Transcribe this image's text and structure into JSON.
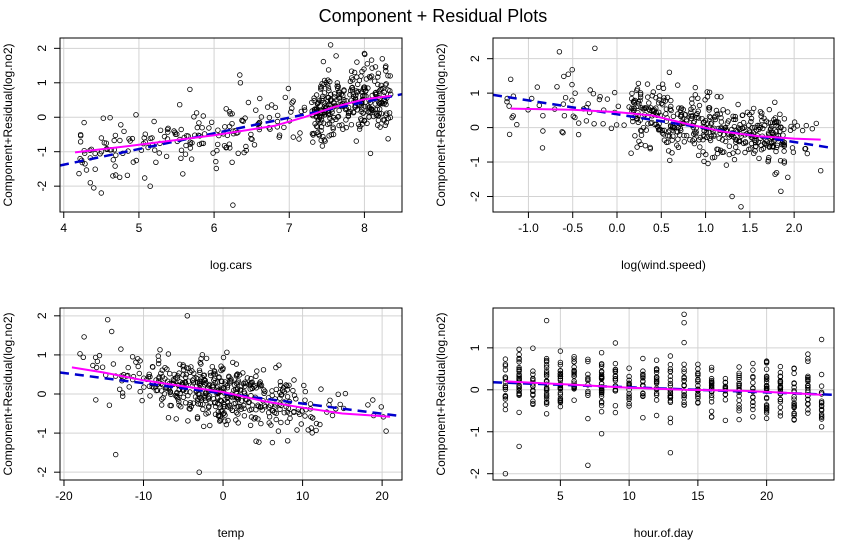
{
  "figure_title": "Component + Residual Plots",
  "colors": {
    "points": "#000000",
    "linear_fit": "#0000cd",
    "smooth_fit": "#ff00ff",
    "grid": "#d3d3d3",
    "frame": "#000000"
  },
  "chart_data": [
    {
      "type": "scatter",
      "xlabel": "log.cars",
      "ylabel": "Component+Residual(log.no2)",
      "xlim": [
        3.95,
        8.5
      ],
      "ylim": [
        -2.75,
        2.3
      ],
      "xticks": [
        4,
        5,
        6,
        7,
        8
      ],
      "yticks": [
        -2,
        -1,
        0,
        1,
        2
      ],
      "grid": true,
      "seed": 11,
      "points": {
        "count": 500,
        "x_distribution": "concentrated near 7.4-8.3, sparser 4.2-6.5",
        "trend": [
          [
            4.1,
            -1.05
          ],
          [
            5.0,
            -0.8
          ],
          [
            6.0,
            -0.5
          ],
          [
            7.0,
            0.0
          ],
          [
            7.6,
            0.35
          ],
          [
            8.2,
            0.55
          ]
        ],
        "spread_sd": 0.6,
        "outliers": [
          [
            7.55,
            2.1
          ],
          [
            8.0,
            1.85
          ],
          [
            6.25,
            -2.55
          ],
          [
            4.4,
            -2.05
          ],
          [
            4.5,
            -2.2
          ],
          [
            5.15,
            -2.0
          ],
          [
            6.35,
            1.0
          ],
          [
            7.9,
            1.6
          ]
        ]
      },
      "linear_fit": [
        [
          3.95,
          -1.4
        ],
        [
          8.5,
          0.67
        ]
      ],
      "smooth_fit": [
        [
          4.15,
          -1.02
        ],
        [
          5.0,
          -0.8
        ],
        [
          6.0,
          -0.52
        ],
        [
          6.8,
          -0.25
        ],
        [
          7.2,
          0.0
        ],
        [
          7.6,
          0.3
        ],
        [
          8.0,
          0.52
        ],
        [
          8.35,
          0.62
        ]
      ]
    },
    {
      "type": "scatter",
      "xlabel": "log(wind.speed)",
      "ylabel": "Component+Residual(log.no2)",
      "xlim": [
        -1.4,
        2.45
      ],
      "ylim": [
        -2.45,
        2.6
      ],
      "xticks": [
        -1.0,
        -0.5,
        0.0,
        0.5,
        1.0,
        1.5,
        2.0
      ],
      "yticks": [
        -2,
        -1,
        0,
        1,
        2
      ],
      "grid": true,
      "seed": 23,
      "points": {
        "count": 500,
        "x_distribution": "dense between 0.3 and 1.7, sparse tails toward -1.2 and 2.3",
        "trend": [
          [
            -1.25,
            0.55
          ],
          [
            -0.5,
            0.5
          ],
          [
            0.0,
            0.42
          ],
          [
            0.5,
            0.3
          ],
          [
            1.0,
            -0.05
          ],
          [
            1.5,
            -0.25
          ],
          [
            2.3,
            -0.35
          ]
        ],
        "spread_sd": 0.55,
        "outliers": [
          [
            -0.65,
            2.2
          ],
          [
            -0.25,
            2.3
          ],
          [
            -0.55,
            1.55
          ],
          [
            1.4,
            -2.3
          ],
          [
            1.3,
            -2.0
          ],
          [
            1.85,
            -1.85
          ],
          [
            -1.2,
            1.4
          ],
          [
            2.3,
            -1.25
          ]
        ]
      },
      "linear_fit": [
        [
          -1.4,
          0.95
        ],
        [
          2.45,
          -0.6
        ]
      ],
      "smooth_fit": [
        [
          -1.2,
          0.55
        ],
        [
          -0.5,
          0.52
        ],
        [
          0.0,
          0.45
        ],
        [
          0.4,
          0.35
        ],
        [
          0.8,
          0.1
        ],
        [
          1.2,
          -0.12
        ],
        [
          1.6,
          -0.25
        ],
        [
          2.0,
          -0.32
        ],
        [
          2.3,
          -0.35
        ]
      ]
    },
    {
      "type": "scatter",
      "xlabel": "temp",
      "ylabel": "Component+Residual(log.no2)",
      "xlim": [
        -20.5,
        22.5
      ],
      "ylim": [
        -2.2,
        2.2
      ],
      "xticks": [
        -20,
        -10,
        0,
        10,
        20
      ],
      "yticks": [
        -2,
        -1,
        0,
        1,
        2
      ],
      "grid": true,
      "seed": 37,
      "points": {
        "count": 500,
        "x_distribution": "dense between -8 and 8, sparser toward -18 and 21",
        "trend": [
          [
            -18,
            0.62
          ],
          [
            -10,
            0.35
          ],
          [
            -5,
            0.2
          ],
          [
            0,
            0.02
          ],
          [
            5,
            -0.15
          ],
          [
            10,
            -0.3
          ],
          [
            15,
            -0.45
          ],
          [
            21,
            -0.55
          ]
        ],
        "spread_sd": 0.5,
        "outliers": [
          [
            -14.5,
            1.9
          ],
          [
            -4.5,
            2.0
          ],
          [
            -14,
            1.6
          ],
          [
            -3,
            -2.0
          ],
          [
            -13.5,
            -1.55
          ],
          [
            20.5,
            -0.95
          ],
          [
            -16,
            -0.15
          ]
        ]
      },
      "linear_fit": [
        [
          -20.5,
          0.55
        ],
        [
          22.5,
          -0.57
        ]
      ],
      "smooth_fit": [
        [
          -19,
          0.68
        ],
        [
          -15,
          0.55
        ],
        [
          -10,
          0.35
        ],
        [
          -5,
          0.2
        ],
        [
          0,
          0.05
        ],
        [
          5,
          -0.18
        ],
        [
          10,
          -0.35
        ],
        [
          15,
          -0.5
        ],
        [
          21,
          -0.58
        ]
      ]
    },
    {
      "type": "scatter",
      "xlabel": "hour.of.day",
      "ylabel": "Component+Residual(log.no2)",
      "xlim": [
        0.1,
        24.9
      ],
      "ylim": [
        -2.15,
        1.95
      ],
      "xticks": [
        5,
        10,
        15,
        20
      ],
      "yticks": [
        -2,
        -1,
        0,
        1
      ],
      "grid": true,
      "seed": 53,
      "points": {
        "count": 500,
        "x_distribution": "integer hours 1-24, evenly distributed vertical stripes",
        "trend": [
          [
            1,
            0.2
          ],
          [
            12,
            0.05
          ],
          [
            24,
            -0.1
          ]
        ],
        "spread_sd": 0.45,
        "outliers": [
          [
            1,
            -2.0
          ],
          [
            14,
            1.8
          ],
          [
            14,
            1.6
          ],
          [
            2,
            -1.35
          ],
          [
            7,
            -1.8
          ],
          [
            13,
            -1.5
          ],
          [
            24,
            1.2
          ],
          [
            4,
            1.65
          ]
        ]
      },
      "linear_fit": [
        [
          0.1,
          0.18
        ],
        [
          24.9,
          -0.12
        ]
      ],
      "smooth_fit": [
        [
          1,
          0.2
        ],
        [
          6,
          0.12
        ],
        [
          10,
          0.05
        ],
        [
          14,
          0.0
        ],
        [
          18,
          -0.02
        ],
        [
          22,
          -0.08
        ],
        [
          24,
          -0.12
        ]
      ]
    }
  ]
}
